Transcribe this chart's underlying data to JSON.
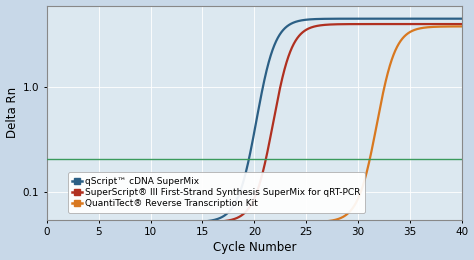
{
  "title": "",
  "xlabel": "Cycle Number",
  "ylabel": "Delta Rn",
  "xlim": [
    0,
    40
  ],
  "ylim_log": [
    0.055,
    6.0
  ],
  "yticks": [
    0.1,
    1.0
  ],
  "ytick_labels": [
    "0.1",
    "1.0"
  ],
  "xticks": [
    0,
    5,
    10,
    15,
    20,
    25,
    30,
    35,
    40
  ],
  "threshold_y": 0.21,
  "threshold_color": "#3a9a5c",
  "fig_facecolor": "#c8d8e8",
  "plot_facecolor": "#dce8f0",
  "lines": [
    {
      "label": "qScript™ cDNA SuperMix",
      "color": "#2b5f85",
      "midpoint": 20.2,
      "steepness": 1.1,
      "ymax": 4.5,
      "ymin": 0.052
    },
    {
      "label": "SuperScript® III First-Strand Synthesis SuperMix for qRT-PCR",
      "color": "#b03020",
      "midpoint": 21.8,
      "steepness": 1.1,
      "ymax": 4.0,
      "ymin": 0.052
    },
    {
      "label": "QuantiTect® Reverse Transcription Kit",
      "color": "#d87820",
      "midpoint": 31.8,
      "steepness": 1.1,
      "ymax": 3.8,
      "ymin": 0.052
    }
  ],
  "legend_fontsize": 6.5,
  "axis_fontsize": 8.5,
  "tick_fontsize": 7.5,
  "linewidth": 1.6
}
